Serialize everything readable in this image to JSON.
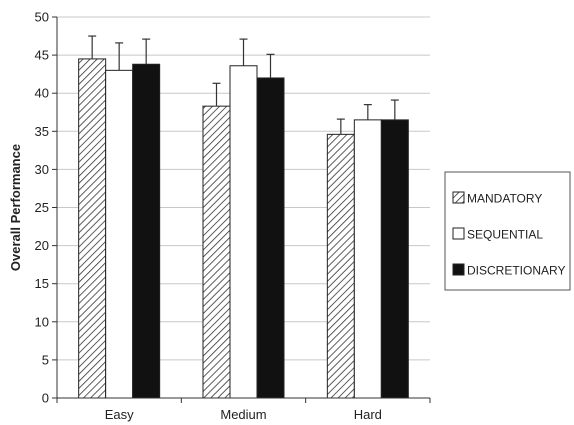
{
  "chart_data": {
    "type": "bar",
    "categories": [
      "Easy",
      "Medium",
      "Hard"
    ],
    "series": [
      {
        "name": "MANDATORY",
        "values": [
          44.5,
          38.3,
          34.6
        ],
        "errors": [
          3.0,
          3.0,
          2.0
        ],
        "fill": "hatch"
      },
      {
        "name": "SEQUENTIAL",
        "values": [
          43.0,
          43.6,
          36.5
        ],
        "errors": [
          3.6,
          3.5,
          2.0
        ],
        "fill": "#ffffff"
      },
      {
        "name": "DISCRETIONARY",
        "values": [
          43.8,
          42.0,
          36.5
        ],
        "errors": [
          3.3,
          3.1,
          2.6
        ],
        "fill": "#111111"
      }
    ],
    "title": "",
    "xlabel": "",
    "ylabel": "Overall Performance",
    "ylim": [
      0,
      50
    ],
    "yticks": [
      "0",
      "5",
      "10",
      "15",
      "20",
      "25",
      "30",
      "35",
      "40",
      "45",
      "50"
    ],
    "grid": true,
    "legend_position": "right",
    "colors": {
      "bar_edge": "#222222",
      "grid": "#c8c8c8",
      "hatch_line": "#333333"
    }
  }
}
